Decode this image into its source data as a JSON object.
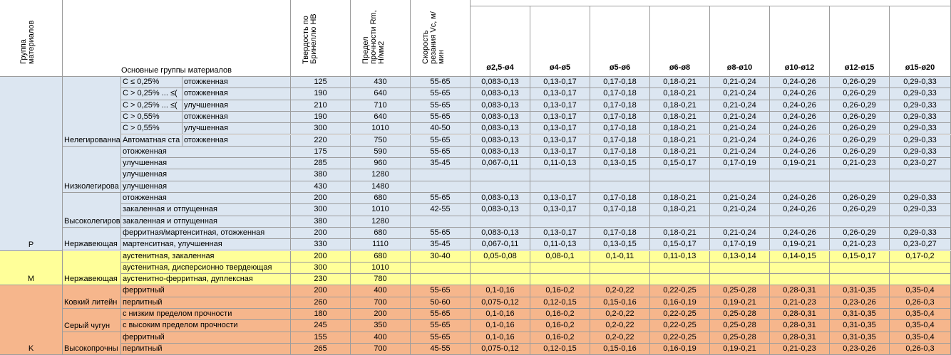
{
  "header": {
    "group": "Группа материалов",
    "main_groups": "Основные группы материалов",
    "hardness": "Твердость по Бринеллю HB",
    "strength": "Предел прочности Rm, Н/мм2",
    "speed": "Скорость резания Vc, м/мин",
    "diameters": [
      "ø2,5-ø4",
      "ø4-ø5",
      "ø5-ø6",
      "ø6-ø8",
      "ø8-ø10",
      "ø10-ø12",
      "ø12-ø15",
      "ø15-ø20"
    ]
  },
  "groups": [
    {
      "letter": "P",
      "color": "#dce6f1",
      "materials": [
        {
          "name": "Нелегированна",
          "rows": [
            {
              "carbon": "C ≤ 0,25%",
              "condition": "отожженная",
              "hb": 125,
              "rm": 430,
              "vc": "55-65",
              "feeds": [
                "0,083-0,13",
                "0,13-0,17",
                "0,17-0,18",
                "0,18-0,21",
                "0,21-0,24",
                "0,24-0,26",
                "0,26-0,29",
                "0,29-0,33"
              ]
            },
            {
              "carbon": "C > 0,25% ... ≤(",
              "condition": "отожженная",
              "hb": 190,
              "rm": 640,
              "vc": "55-65",
              "feeds": [
                "0,083-0,13",
                "0,13-0,17",
                "0,17-0,18",
                "0,18-0,21",
                "0,21-0,24",
                "0,24-0,26",
                "0,26-0,29",
                "0,29-0,33"
              ]
            },
            {
              "carbon": "C > 0,25% ... ≤(",
              "condition": "улучшенная",
              "hb": 210,
              "rm": 710,
              "vc": "55-65",
              "feeds": [
                "0,083-0,13",
                "0,13-0,17",
                "0,17-0,18",
                "0,18-0,21",
                "0,21-0,24",
                "0,24-0,26",
                "0,26-0,29",
                "0,29-0,33"
              ]
            },
            {
              "carbon": "C > 0,55%",
              "condition": "отожженная",
              "hb": 190,
              "rm": 640,
              "vc": "55-65",
              "feeds": [
                "0,083-0,13",
                "0,13-0,17",
                "0,17-0,18",
                "0,18-0,21",
                "0,21-0,24",
                "0,24-0,26",
                "0,26-0,29",
                "0,29-0,33"
              ]
            },
            {
              "carbon": "C > 0,55%",
              "condition": "улучшенная",
              "hb": 300,
              "rm": 1010,
              "vc": "40-50",
              "feeds": [
                "0,083-0,13",
                "0,13-0,17",
                "0,17-0,18",
                "0,18-0,21",
                "0,21-0,24",
                "0,24-0,26",
                "0,26-0,29",
                "0,29-0,33"
              ]
            },
            {
              "carbon": "Автоматная ста",
              "condition": "отожженная",
              "hb": 220,
              "rm": 750,
              "vc": "55-65",
              "feeds": [
                "0,083-0,13",
                "0,13-0,17",
                "0,17-0,18",
                "0,18-0,21",
                "0,21-0,24",
                "0,24-0,26",
                "0,26-0,29",
                "0,29-0,33"
              ]
            }
          ]
        },
        {
          "name": "Низколегирова",
          "rows": [
            {
              "condition": "отожженная",
              "hb": 175,
              "rm": 590,
              "vc": "55-65",
              "feeds": [
                "0,083-0,13",
                "0,13-0,17",
                "0,17-0,18",
                "0,18-0,21",
                "0,21-0,24",
                "0,24-0,26",
                "0,26-0,29",
                "0,29-0,33"
              ]
            },
            {
              "condition": "улучшенная",
              "hb": 285,
              "rm": 960,
              "vc": "35-45",
              "feeds": [
                "0,067-0,11",
                "0,11-0,13",
                "0,13-0,15",
                "0,15-0,17",
                "0,17-0,19",
                "0,19-0,21",
                "0,21-0,23",
                "0,23-0,27"
              ]
            },
            {
              "condition": "улучшенная",
              "hb": 380,
              "rm": 1280
            },
            {
              "condition": "улучшенная",
              "hb": 430,
              "rm": 1480
            }
          ]
        },
        {
          "name": "Высоколегиров",
          "rows": [
            {
              "condition": "отожженная",
              "hb": 200,
              "rm": 680,
              "vc": "55-65",
              "feeds": [
                "0,083-0,13",
                "0,13-0,17",
                "0,17-0,18",
                "0,18-0,21",
                "0,21-0,24",
                "0,24-0,26",
                "0,26-0,29",
                "0,29-0,33"
              ]
            },
            {
              "condition": "закаленная и отпущенная",
              "hb": 300,
              "rm": 1010,
              "vc": "42-55",
              "feeds": [
                "0,083-0,13",
                "0,13-0,17",
                "0,17-0,18",
                "0,18-0,21",
                "0,21-0,24",
                "0,24-0,26",
                "0,26-0,29",
                "0,29-0,33"
              ]
            },
            {
              "condition": "закаленная и отпущенная",
              "hb": 380,
              "rm": 1280
            }
          ]
        },
        {
          "name": "Нержавеющая",
          "rows": [
            {
              "condition": "ферритная/мартенситная, отожженная",
              "hb": 200,
              "rm": 680,
              "vc": "55-65",
              "feeds": [
                "0,083-0,13",
                "0,13-0,17",
                "0,17-0,18",
                "0,18-0,21",
                "0,21-0,24",
                "0,24-0,26",
                "0,26-0,29",
                "0,29-0,33"
              ]
            },
            {
              "condition": "мартенситная, улучшенная",
              "hb": 330,
              "rm": 1110,
              "vc": "35-45",
              "feeds": [
                "0,067-0,11",
                "0,11-0,13",
                "0,13-0,15",
                "0,15-0,17",
                "0,17-0,19",
                "0,19-0,21",
                "0,21-0,23",
                "0,23-0,27"
              ]
            }
          ]
        }
      ]
    },
    {
      "letter": "M",
      "color": "#ffff99",
      "materials": [
        {
          "name": "Нержавеющая",
          "rows": [
            {
              "condition": "аустенитная, закаленная",
              "hb": 200,
              "rm": 680,
              "vc": "30-40",
              "feeds": [
                "0,05-0,08",
                "0,08-0,1",
                "0,1-0,11",
                "0,11-0,13",
                "0,13-0,14",
                "0,14-0,15",
                "0,15-0,17",
                "0,17-0,2"
              ]
            },
            {
              "condition": "аустенитная, дисперсионно твердеющая",
              "hb": 300,
              "rm": 1010
            },
            {
              "condition": "аустенитно-ферритная, дуплексная",
              "hb": 230,
              "rm": 780
            }
          ]
        }
      ]
    },
    {
      "letter": "K",
      "color": "#f6b68c",
      "materials": [
        {
          "name": "Ковкий литейн",
          "rows": [
            {
              "condition": "ферритный",
              "hb": 200,
              "rm": 400,
              "vc": "55-65",
              "feeds": [
                "0,1-0,16",
                "0,16-0,2",
                "0,2-0,22",
                "0,22-0,25",
                "0,25-0,28",
                "0,28-0,31",
                "0,31-0,35",
                "0,35-0,4"
              ]
            },
            {
              "condition": "перлитный",
              "hb": 260,
              "rm": 700,
              "vc": "50-60",
              "feeds": [
                "0,075-0,12",
                "0,12-0,15",
                "0,15-0,16",
                "0,16-0,19",
                "0,19-0,21",
                "0,21-0,23",
                "0,23-0,26",
                "0,26-0,3"
              ]
            }
          ]
        },
        {
          "name": "Серый чугун",
          "rows": [
            {
              "condition": "с низким пределом прочности",
              "hb": 180,
              "rm": 200,
              "vc": "55-65",
              "feeds": [
                "0,1-0,16",
                "0,16-0,2",
                "0,2-0,22",
                "0,22-0,25",
                "0,25-0,28",
                "0,28-0,31",
                "0,31-0,35",
                "0,35-0,4"
              ]
            },
            {
              "condition": "с высоким пределом прочности",
              "hb": 245,
              "rm": 350,
              "vc": "55-65",
              "feeds": [
                "0,1-0,16",
                "0,16-0,2",
                "0,2-0,22",
                "0,22-0,25",
                "0,25-0,28",
                "0,28-0,31",
                "0,31-0,35",
                "0,35-0,4"
              ]
            }
          ]
        },
        {
          "name": "Высокопрочны",
          "rows": [
            {
              "condition": "ферритный",
              "hb": 155,
              "rm": 400,
              "vc": "55-65",
              "feeds": [
                "0,1-0,16",
                "0,16-0,2",
                "0,2-0,22",
                "0,22-0,25",
                "0,25-0,28",
                "0,28-0,31",
                "0,31-0,35",
                "0,35-0,4"
              ]
            },
            {
              "condition": "перлитный",
              "hb": 265,
              "rm": 700,
              "vc": "45-55",
              "feeds": [
                "0,075-0,12",
                "0,12-0,15",
                "0,15-0,16",
                "0,16-0,19",
                "0,19-0,21",
                "0,21-0,23",
                "0,23-0,26",
                "0,26-0,3"
              ]
            }
          ]
        }
      ]
    }
  ]
}
